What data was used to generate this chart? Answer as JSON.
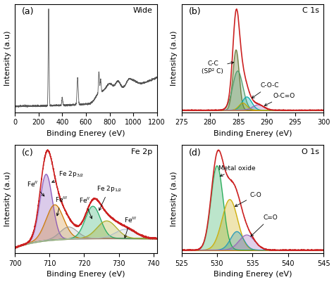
{
  "panel_a": {
    "label": "(a)",
    "title": "Wide",
    "xlabel": "Binding Enerey (eV)",
    "ylabel": "Intensity (a.u)",
    "xmin": 0,
    "xmax": 1200
  },
  "panel_b": {
    "label": "(b)",
    "title": "C 1s",
    "xlabel": "Binding Enerey (eV)",
    "ylabel": "Intensity (a.u)",
    "xmin": 275,
    "xmax": 300
  },
  "panel_c": {
    "label": "(c)",
    "title": "Fe 2p",
    "xlabel": "Binding Enerey (eV)",
    "ylabel": "Intensity (a.u)",
    "xmin": 700,
    "xmax": 741
  },
  "panel_d": {
    "label": "(d)",
    "title": "O 1s",
    "xlabel": "Binding Enerey (eV)",
    "ylabel": "Intensity (a.u)",
    "xmin": 525,
    "xmax": 545
  },
  "figure": {
    "bg_color": "#ffffff",
    "label_fontsize": 8,
    "tick_fontsize": 7,
    "title_fontsize": 8,
    "annot_fontsize": 6.5
  }
}
